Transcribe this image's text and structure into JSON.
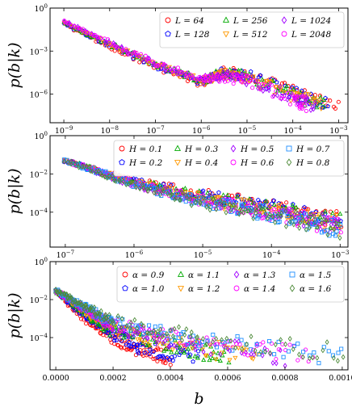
{
  "chart_data": [
    {
      "type": "scatter",
      "ylabel": "p(b|k)",
      "xscale": "log",
      "yscale": "log",
      "xlim": [
        5e-10,
        0.0016
      ],
      "ylim": [
        1e-08,
        1
      ],
      "x_tick_labels": [
        "10^-9",
        "10^-8",
        "10^-7",
        "10^-6",
        "10^-5",
        "10^-4",
        "10^-3"
      ],
      "y_tick_labels": [
        "10^0",
        "10^-3",
        "10^-6"
      ],
      "legend": {
        "placement": "top-right",
        "columns": 3
      },
      "series": [
        {
          "name": "L = 64",
          "color": "#ff0000",
          "marker": "circle",
          "points": [
            [
              1e-09,
              0.08
            ],
            [
              1e-08,
              0.002
            ],
            [
              1e-07,
              8e-05
            ],
            [
              1e-06,
              6e-06
            ],
            [
              3e-06,
              4e-05
            ],
            [
              1e-05,
              2e-05
            ],
            [
              0.0001,
              1.5e-06
            ],
            [
              0.001,
              1e-07
            ]
          ]
        },
        {
          "name": "L = 128",
          "color": "#0000ff",
          "marker": "pentagon",
          "points": [
            [
              1e-09,
              0.09
            ],
            [
              1e-08,
              0.0025
            ],
            [
              1e-07,
              0.0001
            ],
            [
              1e-06,
              7e-06
            ],
            [
              3e-06,
              3.5e-05
            ],
            [
              1e-05,
              1.8e-05
            ],
            [
              0.0001,
              1.2e-06
            ],
            [
              0.0006,
              2e-07
            ]
          ]
        },
        {
          "name": "L = 256",
          "color": "#00aa00",
          "marker": "triangle-up",
          "points": [
            [
              1e-09,
              0.1
            ],
            [
              1e-08,
              0.003
            ],
            [
              1e-07,
              0.00012
            ],
            [
              1e-06,
              8e-06
            ],
            [
              3e-06,
              3e-05
            ],
            [
              1e-05,
              1.5e-05
            ],
            [
              0.0001,
              9e-07
            ],
            [
              0.0005,
              2e-07
            ]
          ]
        },
        {
          "name": "L = 512",
          "color": "#ff9900",
          "marker": "triangle-down",
          "points": [
            [
              1e-09,
              0.11
            ],
            [
              1e-08,
              0.003
            ],
            [
              1e-07,
              0.00013
            ],
            [
              1e-06,
              8e-06
            ],
            [
              3e-06,
              2.5e-05
            ],
            [
              1e-05,
              1.2e-05
            ],
            [
              0.0001,
              7e-07
            ],
            [
              0.0004,
              2e-07
            ]
          ]
        },
        {
          "name": "L = 1024",
          "color": "#a000ff",
          "marker": "diamond",
          "points": [
            [
              1e-09,
              0.12
            ],
            [
              1e-08,
              0.0035
            ],
            [
              1e-07,
              0.00014
            ],
            [
              1e-06,
              9e-06
            ],
            [
              3e-06,
              2e-05
            ],
            [
              1e-05,
              1e-05
            ],
            [
              0.0001,
              5e-07
            ],
            [
              0.0003,
              2e-07
            ]
          ]
        },
        {
          "name": "L = 2048",
          "color": "#ff00ff",
          "marker": "circle",
          "points": [
            [
              1e-09,
              0.12
            ],
            [
              1e-08,
              0.004
            ],
            [
              1e-07,
              0.00015
            ],
            [
              1e-06,
              1e-05
            ],
            [
              3e-06,
              1.5e-05
            ],
            [
              1e-05,
              8e-06
            ],
            [
              0.0001,
              4e-07
            ],
            [
              0.0002,
              2e-07
            ]
          ]
        }
      ]
    },
    {
      "type": "scatter",
      "ylabel": "p(b|k)",
      "xscale": "log",
      "yscale": "log",
      "xlim": [
        6e-08,
        0.0013
      ],
      "ylim": [
        1.5e-06,
        1
      ],
      "x_tick_labels": [
        "10^-7",
        "10^-6",
        "10^-5",
        "10^-4",
        "10^-3"
      ],
      "y_tick_labels": [
        "10^0",
        "10^-2",
        "10^-4"
      ],
      "legend": {
        "placement": "top-right",
        "columns": 4
      },
      "series": [
        {
          "name": "H = 0.1",
          "color": "#ff0000",
          "marker": "circle",
          "points": [
            [
              1e-07,
              0.05
            ],
            [
              1e-06,
              0.004
            ],
            [
              1e-05,
              0.0008
            ],
            [
              0.0001,
              0.0002
            ],
            [
              0.001,
              4e-05
            ]
          ]
        },
        {
          "name": "H = 0.2",
          "color": "#0000ff",
          "marker": "pentagon",
          "points": [
            [
              1e-07,
              0.05
            ],
            [
              1e-06,
              0.004
            ],
            [
              1e-05,
              0.0007
            ],
            [
              0.0001,
              0.00017
            ],
            [
              0.001,
              3e-05
            ]
          ]
        },
        {
          "name": "H = 0.3",
          "color": "#00aa00",
          "marker": "triangle-up",
          "points": [
            [
              1e-07,
              0.05
            ],
            [
              1e-06,
              0.0035
            ],
            [
              1e-05,
              0.0006
            ],
            [
              0.0001,
              0.00014
            ],
            [
              0.001,
              2.5e-05
            ]
          ]
        },
        {
          "name": "H = 0.4",
          "color": "#ff9900",
          "marker": "triangle-down",
          "points": [
            [
              1e-07,
              0.05
            ],
            [
              1e-06,
              0.0035
            ],
            [
              1e-05,
              0.0005
            ],
            [
              0.0001,
              0.00012
            ],
            [
              0.001,
              2e-05
            ]
          ]
        },
        {
          "name": "H = 0.5",
          "color": "#a000ff",
          "marker": "diamond",
          "points": [
            [
              1e-07,
              0.05
            ],
            [
              1e-06,
              0.003
            ],
            [
              1e-05,
              0.00045
            ],
            [
              0.0001,
              0.0001
            ],
            [
              0.001,
              1.8e-05
            ]
          ]
        },
        {
          "name": "H = 0.6",
          "color": "#ff00ff",
          "marker": "circle",
          "points": [
            [
              1e-07,
              0.05
            ],
            [
              1e-06,
              0.003
            ],
            [
              1e-05,
              0.0004
            ],
            [
              0.0001,
              9e-05
            ],
            [
              0.001,
              1.6e-05
            ]
          ]
        },
        {
          "name": "H = 0.7",
          "color": "#1e90ff",
          "marker": "square",
          "points": [
            [
              1e-07,
              0.05
            ],
            [
              1e-06,
              0.003
            ],
            [
              1e-05,
              0.00035
            ],
            [
              0.0001,
              8e-05
            ],
            [
              0.001,
              1.4e-05
            ]
          ]
        },
        {
          "name": "H = 0.8",
          "color": "#4e8b3a",
          "marker": "diamond",
          "points": [
            [
              1e-07,
              0.05
            ],
            [
              1e-06,
              0.0025
            ],
            [
              1e-05,
              0.0003
            ],
            [
              0.0001,
              7e-05
            ],
            [
              0.001,
              1.2e-05
            ]
          ]
        }
      ]
    },
    {
      "type": "scatter",
      "xlabel": "b",
      "ylabel": "p(b|k)",
      "xscale": "linear",
      "yscale": "log",
      "xlim": [
        -2e-05,
        0.00102
      ],
      "ylim": [
        2e-06,
        1
      ],
      "x_tick_labels": [
        "0.0000",
        "0.0002",
        "0.0004",
        "0.0006",
        "0.0008",
        "0.0010"
      ],
      "y_tick_labels": [
        "10^0",
        "10^-2",
        "10^-4"
      ],
      "legend": {
        "placement": "top-right",
        "columns": 4
      },
      "series": [
        {
          "name": "α = 0.9",
          "color": "#ff0000",
          "marker": "circle",
          "points": [
            [
              0,
              0.03
            ],
            [
              0.0001,
              0.001
            ],
            [
              0.0002,
              0.0001
            ],
            [
              0.0003,
              2e-05
            ],
            [
              0.0004,
              1e-05
            ]
          ]
        },
        {
          "name": "α = 1.0",
          "color": "#0000ff",
          "marker": "pentagon",
          "points": [
            [
              0,
              0.03
            ],
            [
              0.0001,
              0.0015
            ],
            [
              0.0002,
              0.00015
            ],
            [
              0.0003,
              3e-05
            ],
            [
              0.0005,
              1e-05
            ]
          ]
        },
        {
          "name": "α = 1.1",
          "color": "#00aa00",
          "marker": "triangle-up",
          "points": [
            [
              0,
              0.03
            ],
            [
              0.0001,
              0.002
            ],
            [
              0.0002,
              0.0002
            ],
            [
              0.0004,
              4e-05
            ],
            [
              0.0006,
              1e-05
            ]
          ]
        },
        {
          "name": "α = 1.2",
          "color": "#ff9900",
          "marker": "triangle-down",
          "points": [
            [
              0,
              0.03
            ],
            [
              0.0001,
              0.0025
            ],
            [
              0.0002,
              0.0003
            ],
            [
              0.0004,
              5e-05
            ],
            [
              0.0007,
              1e-05
            ]
          ]
        },
        {
          "name": "α = 1.3",
          "color": "#a000ff",
          "marker": "diamond",
          "points": [
            [
              0,
              0.03
            ],
            [
              0.0001,
              0.003
            ],
            [
              0.0002,
              0.0004
            ],
            [
              0.0004,
              7e-05
            ],
            [
              0.0008,
              1e-05
            ]
          ]
        },
        {
          "name": "α = 1.4",
          "color": "#ff00ff",
          "marker": "circle",
          "points": [
            [
              0,
              0.03
            ],
            [
              0.0001,
              0.0035
            ],
            [
              0.0002,
              0.0005
            ],
            [
              0.0005,
              6e-05
            ],
            [
              0.0009,
              1e-05
            ]
          ]
        },
        {
          "name": "α = 1.5",
          "color": "#1e90ff",
          "marker": "square",
          "points": [
            [
              0,
              0.03
            ],
            [
              0.0001,
              0.004
            ],
            [
              0.0002,
              0.0006
            ],
            [
              0.0005,
              8e-05
            ],
            [
              0.001,
              1e-05
            ]
          ]
        },
        {
          "name": "α = 1.6",
          "color": "#4e8b3a",
          "marker": "diamond",
          "points": [
            [
              0,
              0.03
            ],
            [
              0.0001,
              0.0045
            ],
            [
              0.0002,
              0.0008
            ],
            [
              0.0005,
              0.0001
            ],
            [
              0.001,
              1.5e-05
            ]
          ]
        }
      ]
    }
  ]
}
